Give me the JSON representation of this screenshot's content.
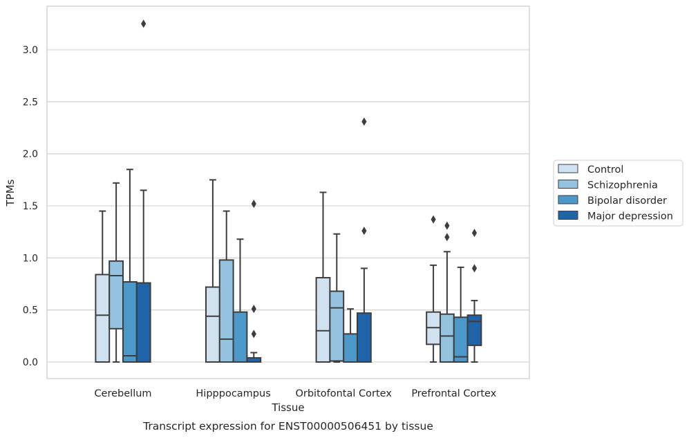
{
  "chart_data": {
    "type": "box",
    "title": "",
    "xlabel": "Tissue",
    "ylabel": "TPMs",
    "caption": "Transcript expression for ENST00000506451 by tissue",
    "categories": [
      "Cerebellum",
      "Hipppocampus",
      "Orbitofontal Cortex",
      "Prefrontal Cortex"
    ],
    "ylim": [
      -0.16,
      3.35
    ],
    "yticks": [
      0.0,
      0.5,
      1.0,
      1.5,
      2.0,
      2.5,
      3.0
    ],
    "ytick_labels": [
      "0.0",
      "0.5",
      "1.0",
      "1.5",
      "2.0",
      "2.5",
      "3.0"
    ],
    "grid": "horizontal",
    "legend_position": "right",
    "series": [
      {
        "name": "Control",
        "color": "#d0e1f0",
        "boxes": [
          {
            "whislo": 0.0,
            "q1": 0.0,
            "med": 0.45,
            "q3": 0.84,
            "whishi": 1.45,
            "fliers": []
          },
          {
            "whislo": 0.0,
            "q1": 0.0,
            "med": 0.44,
            "q3": 0.72,
            "whishi": 1.75,
            "fliers": []
          },
          {
            "whislo": 0.0,
            "q1": 0.0,
            "med": 0.3,
            "q3": 0.81,
            "whishi": 1.63,
            "fliers": []
          },
          {
            "whislo": 0.0,
            "q1": 0.17,
            "med": 0.33,
            "q3": 0.48,
            "whishi": 0.93,
            "fliers": [
              1.37
            ]
          }
        ]
      },
      {
        "name": "Schizophrenia",
        "color": "#93c3df",
        "boxes": [
          {
            "whislo": 0.0,
            "q1": 0.32,
            "med": 0.83,
            "q3": 0.97,
            "whishi": 1.72,
            "fliers": []
          },
          {
            "whislo": 0.0,
            "q1": 0.0,
            "med": 0.22,
            "q3": 0.98,
            "whishi": 1.45,
            "fliers": []
          },
          {
            "whislo": 0.0,
            "q1": 0.01,
            "med": 0.52,
            "q3": 0.68,
            "whishi": 1.23,
            "fliers": []
          },
          {
            "whislo": 0.0,
            "q1": 0.0,
            "med": 0.25,
            "q3": 0.46,
            "whishi": 1.06,
            "fliers": [
              1.2,
              1.31
            ]
          }
        ]
      },
      {
        "name": "Bipolar disorder",
        "color": "#4b98c9",
        "boxes": [
          {
            "whislo": 0.0,
            "q1": 0.0,
            "med": 0.06,
            "q3": 0.77,
            "whishi": 1.85,
            "fliers": []
          },
          {
            "whislo": 0.0,
            "q1": 0.0,
            "med": 0.0,
            "q3": 0.48,
            "whishi": 1.18,
            "fliers": []
          },
          {
            "whislo": 0.0,
            "q1": 0.0,
            "med": 0.0,
            "q3": 0.27,
            "whishi": 0.51,
            "fliers": []
          },
          {
            "whislo": 0.0,
            "q1": 0.0,
            "med": 0.05,
            "q3": 0.43,
            "whishi": 0.91,
            "fliers": []
          }
        ]
      },
      {
        "name": "Major depression",
        "color": "#1f63a8",
        "boxes": [
          {
            "whislo": 0.0,
            "q1": 0.0,
            "med": 0.0,
            "q3": 0.76,
            "whishi": 1.65,
            "fliers": [
              3.25
            ]
          },
          {
            "whislo": 0.0,
            "q1": 0.0,
            "med": 0.0,
            "q3": 0.04,
            "whishi": 0.09,
            "fliers": [
              0.27,
              0.51,
              1.52
            ]
          },
          {
            "whislo": 0.0,
            "q1": 0.0,
            "med": 0.0,
            "q3": 0.47,
            "whishi": 0.9,
            "fliers": [
              1.26,
              2.31
            ]
          },
          {
            "whislo": 0.0,
            "q1": 0.16,
            "med": 0.39,
            "q3": 0.45,
            "whishi": 0.59,
            "fliers": [
              0.9,
              1.24
            ]
          }
        ]
      }
    ]
  }
}
